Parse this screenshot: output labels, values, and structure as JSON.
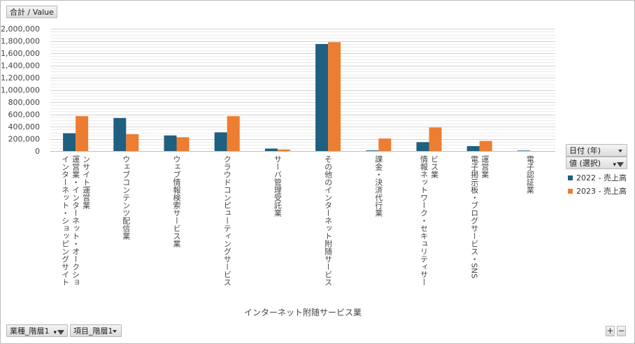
{
  "buttons": {
    "value_field": "合計 / Value",
    "date_field": "日付 (年)",
    "values_field": "値 (選択)",
    "industry_field": "業種_階層1",
    "item_field": "項目_階層1",
    "zoom_in": "+",
    "zoom_out": "−"
  },
  "colors": {
    "series_2022": "#1f5f7f",
    "series_2023": "#ed7d31"
  },
  "chart_data": {
    "type": "bar",
    "xlabel": "インターネット附随サービス業",
    "ylabel": "",
    "ylim": [
      0,
      2000000
    ],
    "yticks": [
      "0",
      "200,000",
      "400,000",
      "600,000",
      "800,000",
      "1,000,000",
      "1,200,000",
      "1,400,000",
      "1,600,000",
      "1,800,000",
      "2,000,000"
    ],
    "gridlines": true,
    "legend_position": "right",
    "categories": [
      "インターネット・ショッピングサイト運営業・インターネット・オークションサイト運営業",
      "ウェブコンテンツ配信業",
      "ウェブ情報検索サービス業",
      "クラウドコンピューティングサービス",
      "サーバ管理受託業",
      "その他のインターネット附随サービス",
      "課金・決済代行業",
      "情報ネットワーク・セキュリティサービス業",
      "電子掲示板・ブログサービス・SNS運営業",
      "電子認証業"
    ],
    "category_lines": [
      [
        "インターネット・ショッピングサイト",
        "運営業・インターネット・オークショ",
        "ンサイト運営業"
      ],
      [
        "ウェブコンテンツ配信業"
      ],
      [
        "ウェブ情報検索サービス業"
      ],
      [
        "クラウドコンピューティングサービス"
      ],
      [
        "サーバ管理受託業"
      ],
      [
        "その他のインターネット附随サービス"
      ],
      [
        "課金・決済代行業"
      ],
      [
        "情報ネットワーク・セキュリティサー",
        "ビス業"
      ],
      [
        "電子掲示板・ブログサービス・SNS",
        "運営業"
      ],
      [
        "電子認証業"
      ]
    ],
    "series": [
      {
        "name": "2022 - 売上高",
        "values": [
          290000,
          540000,
          255000,
          305000,
          40000,
          1750000,
          10000,
          145000,
          80000,
          8000
        ]
      },
      {
        "name": "2023 - 売上高",
        "values": [
          570000,
          275000,
          225000,
          570000,
          25000,
          1780000,
          205000,
          385000,
          165000,
          0
        ]
      }
    ]
  }
}
